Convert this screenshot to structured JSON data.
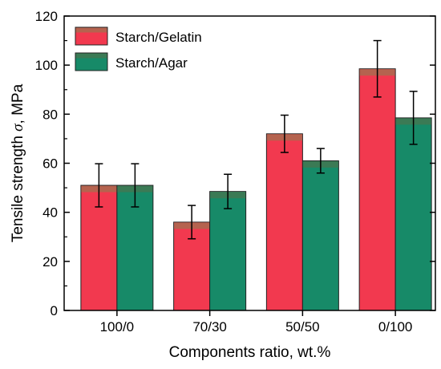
{
  "chart_data": {
    "type": "bar",
    "xlabel": "Components ratio, wt.%",
    "ylabel_prefix": "Tensile strength ",
    "ylabel_symbol": "σ",
    "ylabel_suffix": ", MPa",
    "categories": [
      "100/0",
      "70/30",
      "50/50",
      "0/100"
    ],
    "series": [
      {
        "name": "Starch/Gelatin",
        "color": "#f2394f",
        "top_color": "#b5634f",
        "values": [
          51,
          36,
          72,
          98.5
        ],
        "errors": [
          8.8,
          6.8,
          7.6,
          11.5
        ]
      },
      {
        "name": "Starch/Agar",
        "color": "#178a68",
        "top_color": "#3b7a55",
        "values": [
          51,
          48.5,
          61,
          78.5
        ],
        "errors": [
          8.8,
          7,
          5,
          10.8
        ]
      }
    ],
    "ylim": [
      0,
      120
    ],
    "yticks": [
      0,
      20,
      40,
      60,
      80,
      100,
      120
    ],
    "grid": false,
    "legend_position": "top-left"
  }
}
